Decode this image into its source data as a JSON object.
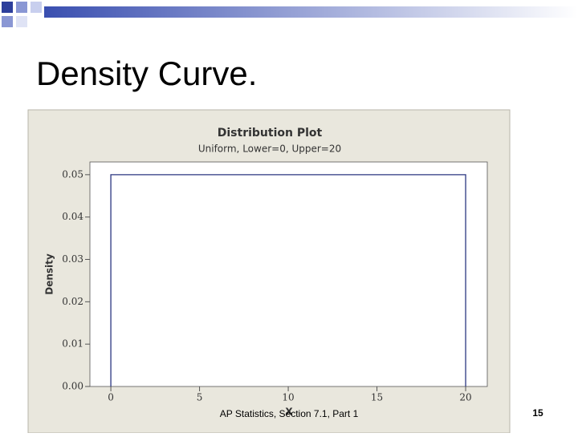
{
  "slide": {
    "title": "Density Curve.",
    "footer": "AP Statistics, Section 7.1, Part 1",
    "page_number": "15"
  },
  "chart_data": {
    "type": "line",
    "title": "Distribution Plot",
    "subtitle": "Uniform, Lower=0, Upper=20",
    "x_label": "X",
    "y_label": "Density",
    "x": [
      0,
      0,
      20,
      20
    ],
    "series": [
      {
        "values": [
          0,
          0.05,
          0.05,
          0
        ],
        "color": "#2a3580"
      }
    ],
    "xlim": [
      -1.18,
      21.22
    ],
    "ylim": [
      0,
      0.053
    ],
    "xticks": [
      0,
      5,
      10,
      15,
      20
    ],
    "yticks": [
      {
        "value": 0,
        "label": "0.00"
      },
      0.01,
      0.02,
      0.03,
      0.04,
      0.05
    ]
  }
}
